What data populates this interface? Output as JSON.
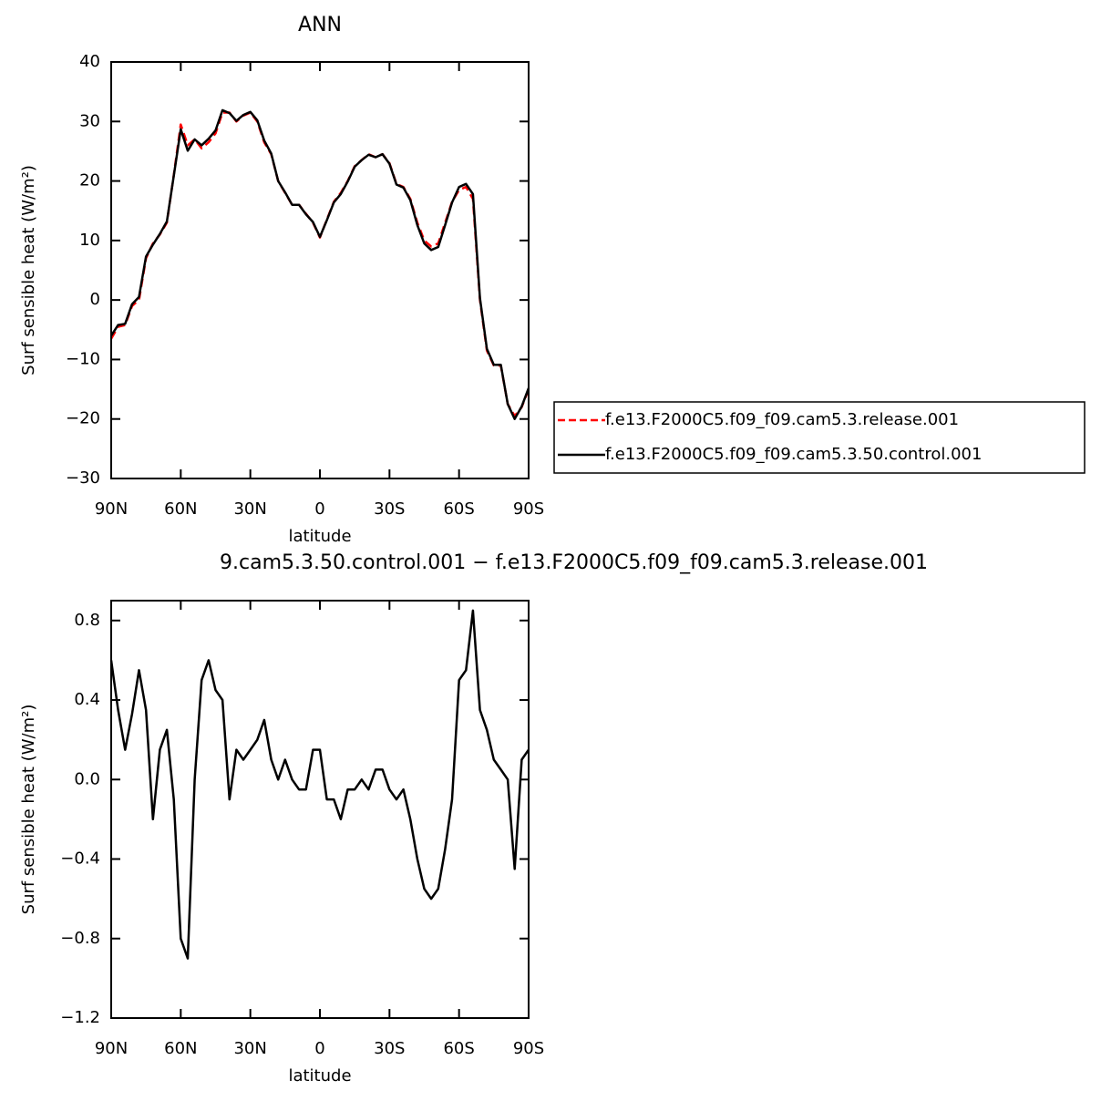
{
  "chart_data": [
    {
      "type": "line",
      "title": "ANN",
      "xlabel": "latitude",
      "ylabel": "Surf sensible heat (W/m²)",
      "x": [
        90,
        87,
        84,
        81,
        78,
        75,
        72,
        69,
        66,
        63,
        60,
        57,
        54,
        51,
        48,
        45,
        42,
        39,
        36,
        33,
        30,
        27,
        24,
        21,
        18,
        15,
        12,
        9,
        6,
        3,
        0,
        -3,
        -6,
        -9,
        -12,
        -15,
        -18,
        -21,
        -24,
        -27,
        -30,
        -33,
        -36,
        -39,
        -42,
        -45,
        -48,
        -51,
        -54,
        -57,
        -60,
        -63,
        -66,
        -69,
        -72,
        -75,
        -78,
        -81,
        -84,
        -87,
        -90
      ],
      "xlim": [
        90,
        -90
      ],
      "xticks": [
        {
          "value": 90,
          "label": "90N"
        },
        {
          "value": 60,
          "label": "60N"
        },
        {
          "value": 30,
          "label": "30N"
        },
        0,
        {
          "value": -30,
          "label": "30S"
        },
        {
          "value": -60,
          "label": "60S"
        },
        {
          "value": -90,
          "label": "90S"
        }
      ],
      "ylim": [
        -30,
        40
      ],
      "yticks": [
        {
          "value": -30,
          "label": "−30"
        },
        {
          "value": -20,
          "label": "−20"
        },
        {
          "value": -10,
          "label": "−10"
        },
        0,
        10,
        20,
        30,
        40
      ],
      "series": [
        {
          "name": "f.e13.F2000C5.f09_f09.cam5.3.release.001",
          "color": "#ff0000",
          "dash": true,
          "values": [
            -6.5,
            -4.5,
            -4.2,
            -1,
            0,
            7,
            9.5,
            11,
            13,
            21,
            29.5,
            26,
            27,
            25.5,
            26.5,
            28,
            31.5,
            31.5,
            30,
            31,
            31.5,
            30,
            26.5,
            24.5,
            20,
            18,
            16,
            16,
            14.5,
            13,
            10.5,
            13.5,
            16.5,
            18,
            20,
            22.5,
            23.5,
            24.5,
            24,
            24.5,
            23,
            19.5,
            19,
            17,
            13,
            10,
            9,
            9.5,
            13,
            16.5,
            18.5,
            19,
            17,
            0,
            -8.5,
            -11,
            -11,
            -17.5,
            -19.5,
            -18,
            -15
          ]
        },
        {
          "name": "f.e13.F2000C5.f09_f09.cam5.3.50.control.001",
          "color": "#000000",
          "dash": false,
          "values": [
            -6,
            -4.2,
            -4,
            -0.7,
            0.5,
            7.3,
            9.3,
            11.1,
            13.2,
            20.9,
            28.7,
            25.1,
            27,
            26,
            27.1,
            28.5,
            31.9,
            31.4,
            30.1,
            31.1,
            31.6,
            30.2,
            26.8,
            24.6,
            20,
            18.1,
            16,
            16,
            14.4,
            13.1,
            10.6,
            13.4,
            16.4,
            17.8,
            19.9,
            22.4,
            23.5,
            24.4,
            24,
            24.5,
            22.9,
            19.4,
            18.9,
            16.8,
            12.6,
            9.5,
            8.4,
            8.9,
            12.6,
            16.4,
            19,
            19.5,
            17.8,
            0.3,
            -8.2,
            -10.9,
            -10.9,
            -17.5,
            -20,
            -17.9,
            -14.8
          ]
        }
      ],
      "legend": "right"
    },
    {
      "type": "line",
      "title": "9.cam5.3.50.control.001 − f.e13.F2000C5.f09_f09.cam5.3.release.001",
      "xlabel": "latitude",
      "ylabel": "Surf sensible heat (W/m²)",
      "x": [
        90,
        87,
        84,
        81,
        78,
        75,
        72,
        69,
        66,
        63,
        60,
        57,
        54,
        51,
        48,
        45,
        42,
        39,
        36,
        33,
        30,
        27,
        24,
        21,
        18,
        15,
        12,
        9,
        6,
        3,
        0,
        -3,
        -6,
        -9,
        -12,
        -15,
        -18,
        -21,
        -24,
        -27,
        -30,
        -33,
        -36,
        -39,
        -42,
        -45,
        -48,
        -51,
        -54,
        -57,
        -60,
        -63,
        -66,
        -69,
        -72,
        -75,
        -78,
        -81,
        -84,
        -87,
        -90
      ],
      "xlim": [
        90,
        -90
      ],
      "xticks": [
        {
          "value": 90,
          "label": "90N"
        },
        {
          "value": 60,
          "label": "60N"
        },
        {
          "value": 30,
          "label": "30N"
        },
        0,
        {
          "value": -30,
          "label": "30S"
        },
        {
          "value": -60,
          "label": "60S"
        },
        {
          "value": -90,
          "label": "90S"
        }
      ],
      "ylim": [
        -1.2,
        0.9
      ],
      "yticks": [
        {
          "value": -1.2,
          "label": "−1.2"
        },
        {
          "value": -0.8,
          "label": "−0.8"
        },
        {
          "value": -0.4,
          "label": "−0.4"
        },
        {
          "value": 0,
          "label": "0.0"
        },
        0.4,
        0.8
      ],
      "series": [
        {
          "color": "#000000",
          "dash": false,
          "values": [
            0.6,
            0.35,
            0.15,
            0.33,
            0.55,
            0.35,
            -0.2,
            0.15,
            0.25,
            -0.1,
            -0.8,
            -0.9,
            0.0,
            0.5,
            0.6,
            0.45,
            0.4,
            -0.1,
            0.15,
            0.1,
            0.15,
            0.2,
            0.3,
            0.1,
            0.0,
            0.1,
            0.0,
            -0.05,
            -0.05,
            0.15,
            0.15,
            -0.1,
            -0.1,
            -0.2,
            -0.05,
            -0.05,
            0.0,
            -0.05,
            0.05,
            0.05,
            -0.05,
            -0.1,
            -0.05,
            -0.2,
            -0.4,
            -0.55,
            -0.6,
            -0.55,
            -0.35,
            -0.1,
            0.5,
            0.55,
            0.85,
            0.35,
            0.25,
            0.1,
            0.05,
            0.0,
            -0.45,
            0.1,
            0.15
          ]
        }
      ]
    }
  ]
}
